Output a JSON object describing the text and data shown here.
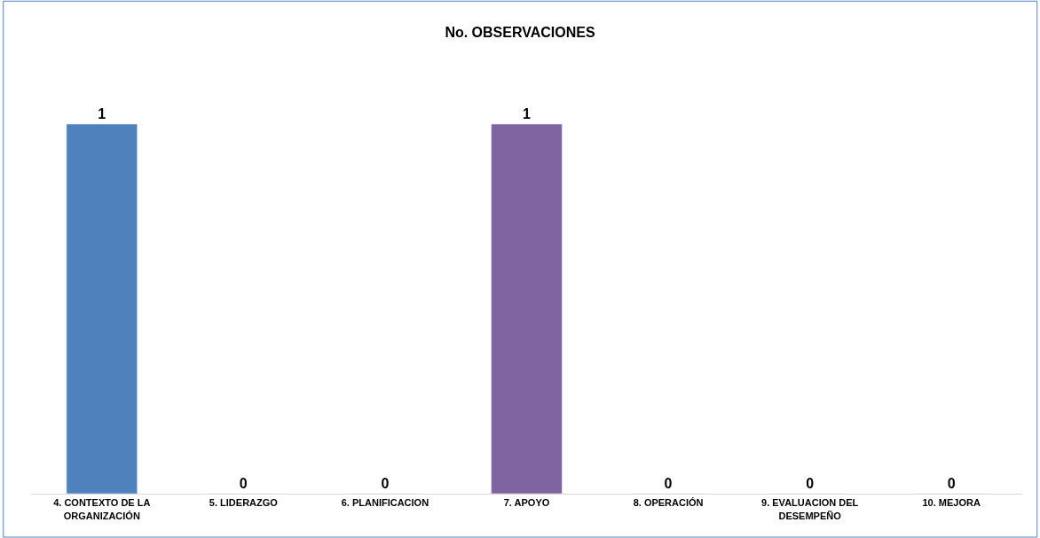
{
  "chart_data": {
    "type": "bar",
    "title": "No. OBSERVACIONES",
    "categories": [
      "4. CONTEXTO DE LA ORGANIZACIÓN",
      "5. LIDERAZGO",
      "6. PLANIFICACION",
      "7. APOYO",
      "8. OPERACIÓN",
      "9. EVALUACION DEL DESEMPEÑO",
      "10. MEJORA"
    ],
    "values": [
      1,
      0,
      0,
      1,
      0,
      0,
      0
    ],
    "colors": [
      "#4f81bd",
      null,
      null,
      "#8064a2",
      null,
      null,
      null
    ],
    "data_labels": true
  }
}
